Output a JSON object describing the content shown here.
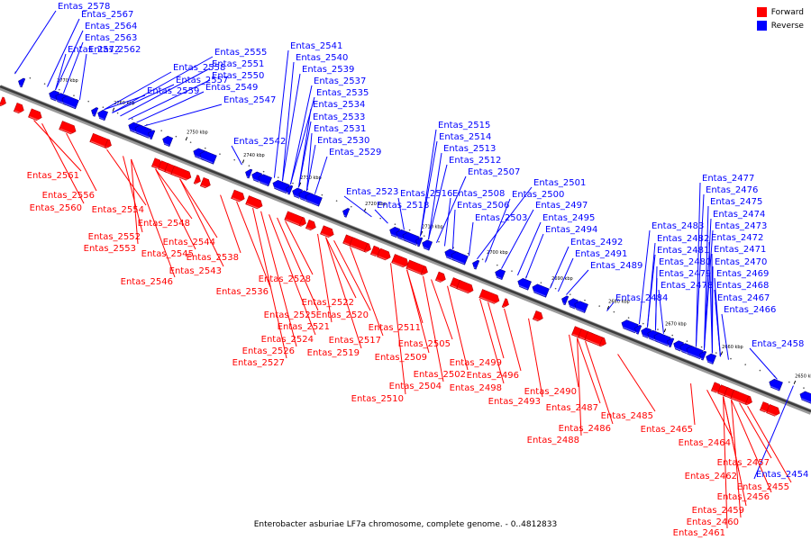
{
  "caption": "Enterobacter asburiae LF7a chromosome, complete genome. - 0..4812833",
  "legend": [
    {
      "label": "Forward",
      "color": "#ff0000"
    },
    {
      "label": "Reverse",
      "color": "#0000ff"
    }
  ],
  "colors": {
    "forward": "#ff0000",
    "reverse": "#0000ff",
    "backbone": "#555555"
  },
  "ticks": [
    "2770 kbp",
    "2760 kbp",
    "2750 kbp",
    "2740 kbp",
    "2730 kbp",
    "2720 kbp",
    "2710 kbp",
    "2700 kbp",
    "2690 kbp",
    "2680 kbp",
    "2670 kbp",
    "2660 kbp",
    "2650 kbp"
  ],
  "reverse_labels": [
    "Entas_2578",
    "Entas_2567",
    "Entas_2564",
    "Entas_2563",
    "Entas_2572",
    "Entas_2562",
    "Entas_2555",
    "Entas_2558",
    "Entas_2551",
    "Entas_2557",
    "Entas_2550",
    "Entas_2559",
    "Entas_2549",
    "Entas_2547",
    "Entas_2541",
    "Entas_2540",
    "Entas_2539",
    "Entas_2537",
    "Entas_2535",
    "Entas_2534",
    "Entas_2533",
    "Entas_2531",
    "Entas_2542",
    "Entas_2530",
    "Entas_2529",
    "Entas_2515",
    "Entas_2514",
    "Entas_2513",
    "Entas_2512",
    "Entas_2507",
    "Entas_2501",
    "Entas_2523",
    "Entas_2516",
    "Entas_2508",
    "Entas_2500",
    "Entas_2518",
    "Entas_2506",
    "Entas_2497",
    "Entas_2503",
    "Entas_2495",
    "Entas_2494",
    "Entas_2492",
    "Entas_2491",
    "Entas_2489",
    "Entas_2484",
    "Entas_2477",
    "Entas_2476",
    "Entas_2475",
    "Entas_2474",
    "Entas_2483",
    "Entas_2473",
    "Entas_2482",
    "Entas_2472",
    "Entas_2481",
    "Entas_2471",
    "Entas_2480",
    "Entas_2470",
    "Entas_2479",
    "Entas_2469",
    "Entas_2478",
    "Entas_2468",
    "Entas_2467",
    "Entas_2466",
    "Entas_2458",
    "Entas_2454"
  ],
  "forward_labels": [
    "Entas_2561",
    "Entas_2556",
    "Entas_2560",
    "Entas_2554",
    "Entas_2548",
    "Entas_2552",
    "Entas_2553",
    "Entas_2544",
    "Entas_2545",
    "Entas_2538",
    "Entas_2543",
    "Entas_2546",
    "Entas_2536",
    "Entas_2528",
    "Entas_2522",
    "Entas_2525",
    "Entas_2520",
    "Entas_2521",
    "Entas_2524",
    "Entas_2517",
    "Entas_2526",
    "Entas_2519",
    "Entas_2527",
    "Entas_2511",
    "Entas_2505",
    "Entas_2509",
    "Entas_2502",
    "Entas_2504",
    "Entas_2510",
    "Entas_2499",
    "Entas_2496",
    "Entas_2498",
    "Entas_2493",
    "Entas_2490",
    "Entas_2487",
    "Entas_2486",
    "Entas_2488",
    "Entas_2485",
    "Entas_2465",
    "Entas_2464",
    "Entas_2457",
    "Entas_2462",
    "Entas_2455",
    "Entas_2456",
    "Entas_2459",
    "Entas_2460",
    "Entas_2461"
  ]
}
